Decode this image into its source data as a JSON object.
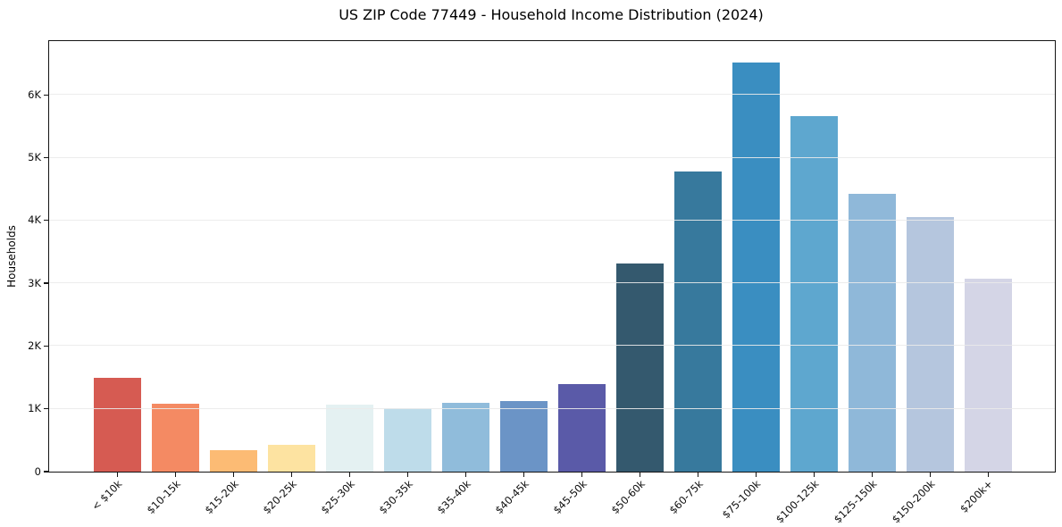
{
  "figure": {
    "kind": "static-matplotlib-bar-chart"
  },
  "chart_data": {
    "type": "bar",
    "title": "US ZIP Code 77449 - Household Income Distribution (2024)",
    "xlabel": "",
    "ylabel": "Households",
    "categories": [
      "< $10k",
      "$10-15k",
      "$15-20k",
      "$20-25k",
      "$25-30k",
      "$30-35k",
      "$35-40k",
      "$40-45k",
      "$45-50k",
      "$50-60k",
      "$60-75k",
      "$75-100k",
      "$100-125k",
      "$125-150k",
      "$150-200k",
      "$200k+"
    ],
    "values": [
      1490,
      1080,
      340,
      430,
      1070,
      1010,
      1090,
      1130,
      1400,
      3320,
      4780,
      6520,
      5660,
      4430,
      4060,
      3080
    ],
    "bar_colors": [
      "#d65b52",
      "#f48a63",
      "#fcbb74",
      "#fde3a1",
      "#e4f1f2",
      "#bedcea",
      "#90bcdb",
      "#6b94c6",
      "#5a5aa8",
      "#34596e",
      "#37799d",
      "#3a8ec1",
      "#5ea7cf",
      "#8fb8d9",
      "#b5c6de",
      "#d4d5e6"
    ],
    "ytick_values": [
      0,
      1000,
      2000,
      3000,
      4000,
      5000,
      6000
    ],
    "ytick_labels": [
      "0",
      "1K",
      "2K",
      "3K",
      "4K",
      "5K",
      "6K"
    ],
    "ylim": [
      0,
      6860
    ],
    "grid": "horizontal-light-gray",
    "legend": "none",
    "x_tick_rotation_deg": 45,
    "bar_edge": "none"
  }
}
